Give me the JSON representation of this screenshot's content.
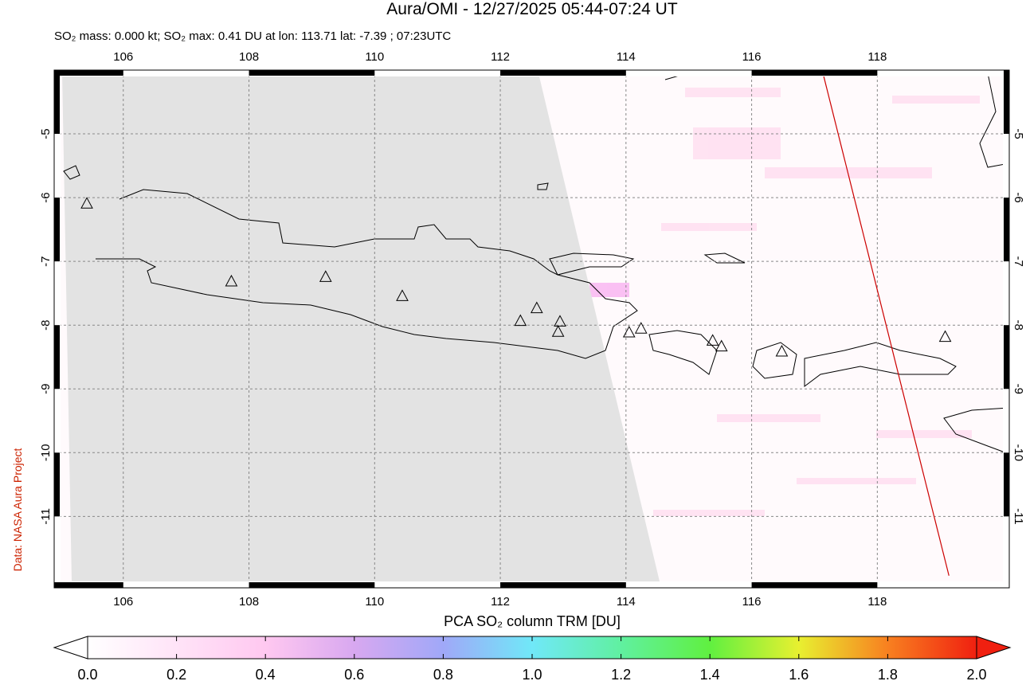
{
  "chart_data": {
    "type": "map",
    "title": "Aura/OMI - 12/27/2025 05:44-07:24 UT",
    "subtitle": "SO₂ mass: 0.000 kt; SO₂ max: 0.41 DU at lon: 113.71 lat: -7.39 ; 07:23UTC",
    "source": "Data: NASA Aura Project",
    "xlim": [
      104.9,
      120.1
    ],
    "ylim": [
      -12.12,
      -4.0
    ],
    "xticks": [
      106,
      108,
      110,
      112,
      114,
      116,
      118
    ],
    "yticks": [
      -5,
      -6,
      -7,
      -8,
      -9,
      -10,
      -11
    ],
    "grid": true,
    "volcanoes": {
      "color": "#000000",
      "x": [
        105.42,
        107.72,
        109.22,
        110.44,
        112.32,
        112.58,
        112.95,
        112.92,
        114.05,
        114.24,
        115.38,
        115.52,
        116.48,
        119.08
      ],
      "y": [
        -6.09,
        -7.31,
        -7.24,
        -7.54,
        -7.93,
        -7.73,
        -7.94,
        -8.1,
        -8.11,
        -8.05,
        -8.24,
        -8.33,
        -8.41,
        -8.18
      ]
    },
    "track": {
      "color": "#cc0000",
      "x": [
        117.13,
        119.14
      ],
      "y": [
        -4.03,
        -11.93
      ]
    },
    "colorbar": {
      "label": "PCA SO₂ column TRM [DU]",
      "lim": [
        0,
        2
      ],
      "ticks": [
        {
          "value": 0,
          "label": "0.0"
        },
        {
          "value": 0.2,
          "label": "0.2"
        },
        {
          "value": 0.4,
          "label": "0.4"
        },
        {
          "value": 0.6,
          "label": "0.6"
        },
        {
          "value": 0.8,
          "label": "0.8"
        },
        {
          "value": 1,
          "label": "1.0"
        },
        {
          "value": 1.2,
          "label": "1.2"
        },
        {
          "value": 1.4,
          "label": "1.4"
        },
        {
          "value": 1.6,
          "label": "1.6"
        },
        {
          "value": 1.8,
          "label": "1.8"
        },
        {
          "value": 2,
          "label": "2.0"
        }
      ]
    }
  }
}
